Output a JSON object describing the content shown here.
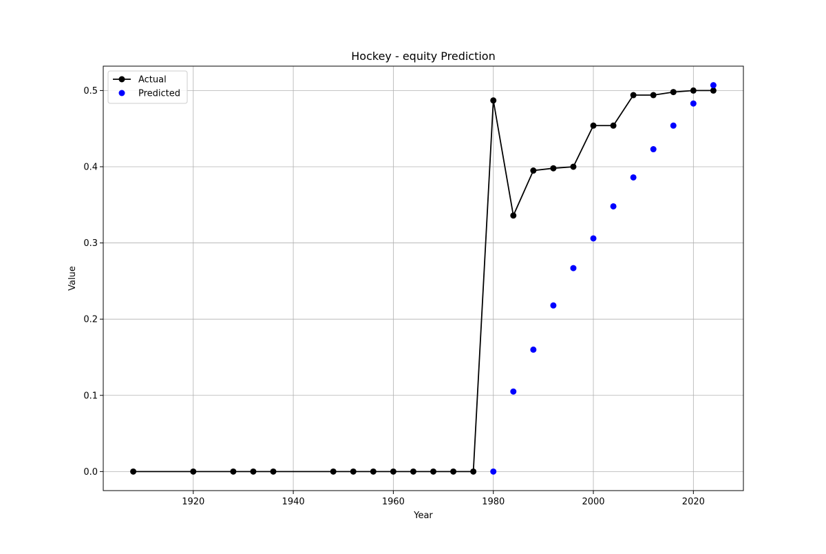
{
  "chart_data": {
    "type": "line",
    "title": "Hockey - equity Prediction",
    "xlabel": "Year",
    "ylabel": "Value",
    "xlim": [
      1902,
      2030
    ],
    "ylim": [
      -0.025,
      0.532
    ],
    "x_ticks": [
      1920,
      1940,
      1960,
      1980,
      2000,
      2020
    ],
    "y_ticks": [
      0.0,
      0.1,
      0.2,
      0.3,
      0.4,
      0.5
    ],
    "x_tick_labels": [
      "1920",
      "1940",
      "1960",
      "1980",
      "2000",
      "2020"
    ],
    "y_tick_labels": [
      "0.0",
      "0.1",
      "0.2",
      "0.3",
      "0.4",
      "0.5"
    ],
    "grid": true,
    "legend_position": "top-left",
    "series": [
      {
        "name": "Actual",
        "kind": "line+markers",
        "color": "#000000",
        "x": [
          1908,
          1920,
          1928,
          1932,
          1936,
          1948,
          1952,
          1956,
          1960,
          1964,
          1968,
          1972,
          1976,
          1980,
          1984,
          1988,
          1992,
          1996,
          2000,
          2004,
          2008,
          2012,
          2016,
          2020,
          2024
        ],
        "y": [
          0.0,
          0.0,
          0.0,
          0.0,
          0.0,
          0.0,
          0.0,
          0.0,
          0.0,
          0.0,
          0.0,
          0.0,
          0.0,
          0.487,
          0.336,
          0.395,
          0.398,
          0.4,
          0.454,
          0.454,
          0.494,
          0.494,
          0.498,
          0.5,
          0.5
        ]
      },
      {
        "name": "Predicted",
        "kind": "scatter",
        "color": "#0000ff",
        "x": [
          1980,
          1984,
          1988,
          1992,
          1996,
          2000,
          2004,
          2008,
          2012,
          2016,
          2020,
          2024
        ],
        "y": [
          0.0,
          0.105,
          0.16,
          0.218,
          0.267,
          0.306,
          0.348,
          0.386,
          0.423,
          0.454,
          0.483,
          0.507
        ]
      }
    ]
  }
}
